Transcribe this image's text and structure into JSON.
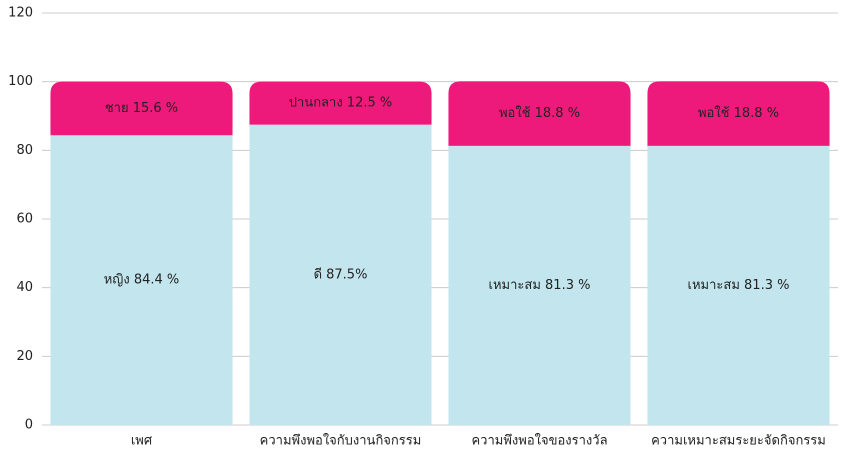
{
  "chart_data": {
    "type": "bar",
    "stacked": true,
    "categories": [
      "เพศ",
      "ความพึงพอใจกับงานกิจกรรม",
      "ความพึงพอใจของรางวัล",
      "ความเหมาะสมระยะจัดกิจกรรม"
    ],
    "series": [
      {
        "color": "#c3e6ee",
        "values": [
          84.4,
          87.5,
          81.3,
          81.3
        ],
        "value_labels": [
          "หญิง 84.4 %",
          "ดี 87.5%",
          "เหมาะสม 81.3 %",
          "เหมาะสม 81.3 %"
        ]
      },
      {
        "color": "#ee1a7b",
        "values": [
          15.6,
          12.5,
          18.8,
          18.8
        ],
        "value_labels": [
          "ชาย 15.6 %",
          "ปานกลาง 12.5 %",
          "พอใช้ 18.8 %",
          "พอใช้ 18.8 %"
        ]
      }
    ],
    "ylim": [
      0,
      120
    ],
    "yticks": [
      0,
      20,
      40,
      60,
      80,
      100,
      120
    ],
    "grid": true
  }
}
